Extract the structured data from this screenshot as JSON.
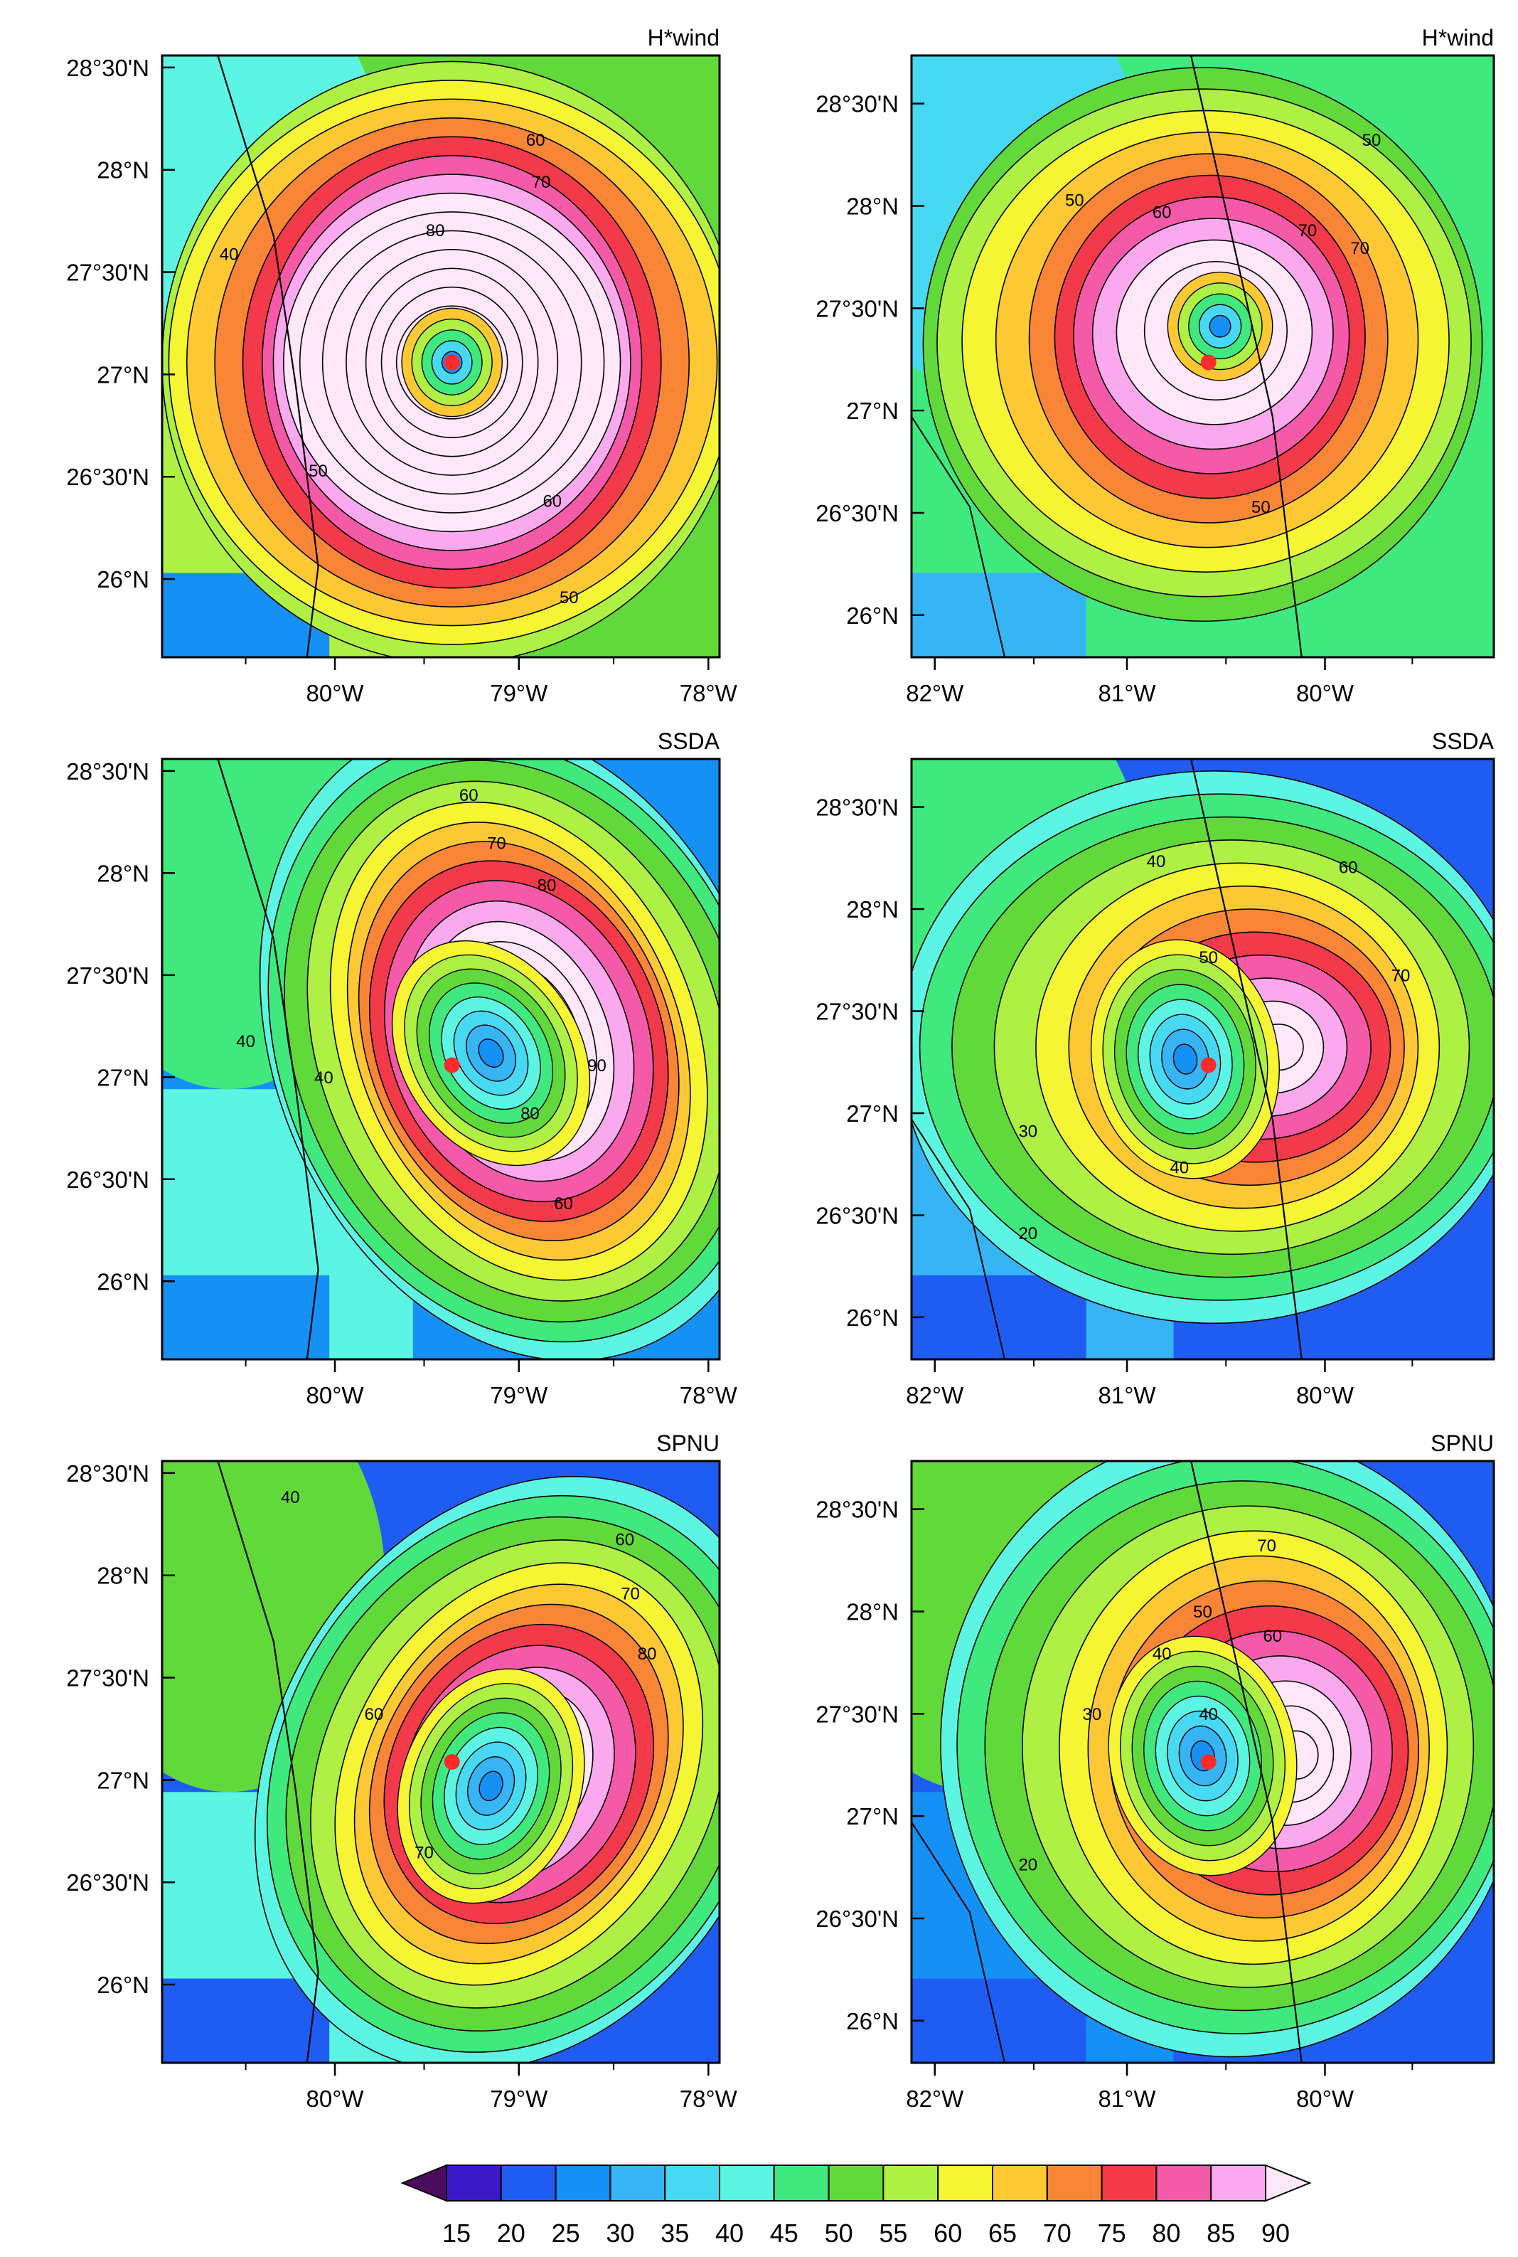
{
  "colors": {
    "levels": [
      "#4a0d5c",
      "#3a19c9",
      "#1f5df2",
      "#1590f4",
      "#36b4f3",
      "#48d9f2",
      "#5cf5e4",
      "#3fe97e",
      "#62d93a",
      "#aef044",
      "#f5f534",
      "#fcc834",
      "#f98536",
      "#f23a4a",
      "#f55aa9",
      "#fba9ee",
      "#fde7f8"
    ],
    "outline": "#000000",
    "coast": "#000000",
    "center_marker": "#ff2a2a"
  },
  "panels": [
    {
      "id": "hwind-left",
      "title": "H*wind",
      "x_ticks": [
        "80°W",
        "79°W",
        "78°W"
      ],
      "y_ticks": [
        "28°30'N",
        "28°N",
        "27°30'N",
        "27°N",
        "26°30'N",
        "26°N"
      ],
      "contour_labels": [
        "40",
        "50",
        "60",
        "70",
        "80",
        "50",
        "60"
      ]
    },
    {
      "id": "hwind-right",
      "title": "H*wind",
      "x_ticks": [
        "82°W",
        "81°W",
        "80°W"
      ],
      "y_ticks": [
        "28°30'N",
        "28°N",
        "27°30'N",
        "27°N",
        "26°30'N",
        "26°N"
      ],
      "contour_labels": [
        "50",
        "50",
        "60",
        "70",
        "70",
        "50"
      ]
    },
    {
      "id": "ssda-left",
      "title": "SSDA",
      "x_ticks": [
        "80°W",
        "79°W",
        "78°W"
      ],
      "y_ticks": [
        "28°30'N",
        "28°N",
        "27°30'N",
        "27°N",
        "26°30'N",
        "26°N"
      ],
      "contour_labels": [
        "60",
        "70",
        "80",
        "90",
        "80",
        "60",
        "40",
        "40"
      ]
    },
    {
      "id": "ssda-right",
      "title": "SSDA",
      "x_ticks": [
        "82°W",
        "81°W",
        "80°W"
      ],
      "y_ticks": [
        "28°30'N",
        "28°N",
        "27°30'N",
        "27°N",
        "26°30'N",
        "26°N"
      ],
      "contour_labels": [
        "40",
        "60",
        "50",
        "70",
        "30",
        "40",
        "20"
      ]
    },
    {
      "id": "spnu-left",
      "title": "SPNU",
      "x_ticks": [
        "80°W",
        "79°W",
        "78°W"
      ],
      "y_ticks": [
        "28°30'N",
        "28°N",
        "27°30'N",
        "27°N",
        "26°30'N",
        "26°N"
      ],
      "contour_labels": [
        "40",
        "60",
        "70",
        "80",
        "60",
        "70"
      ]
    },
    {
      "id": "spnu-right",
      "title": "SPNU",
      "x_ticks": [
        "82°W",
        "81°W",
        "80°W"
      ],
      "y_ticks": [
        "28°30'N",
        "28°N",
        "27°30'N",
        "27°N",
        "26°30'N",
        "26°N"
      ],
      "contour_labels": [
        "70",
        "50",
        "60",
        "40",
        "40",
        "30",
        "20"
      ]
    }
  ],
  "colorbar": {
    "labels": [
      "15",
      "20",
      "25",
      "30",
      "35",
      "40",
      "45",
      "50",
      "55",
      "60",
      "65",
      "70",
      "75",
      "80",
      "85",
      "90"
    ]
  }
}
